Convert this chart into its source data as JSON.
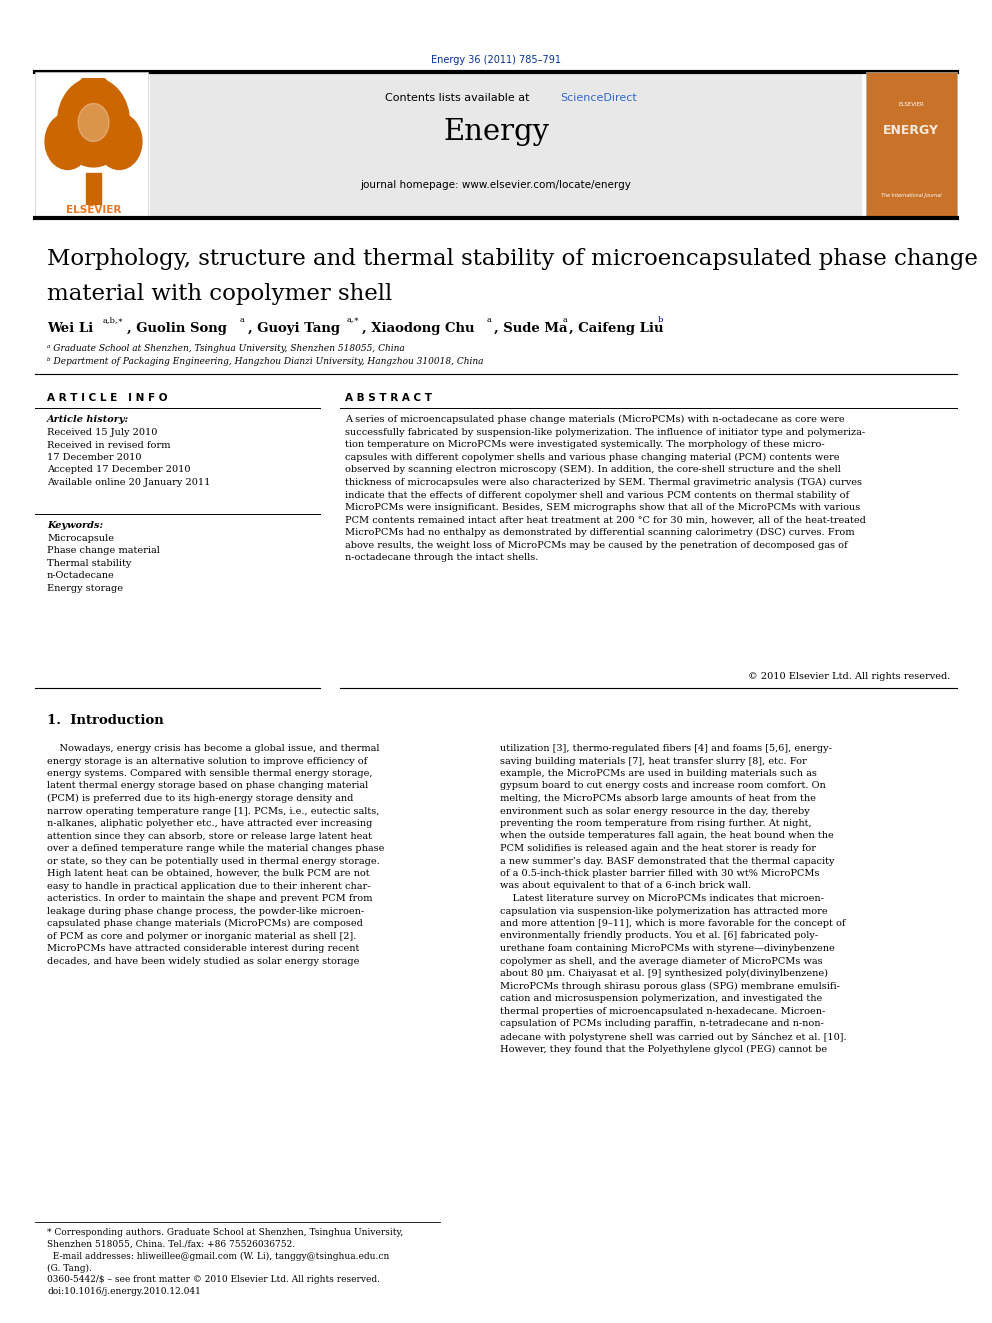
{
  "page_width": 9.92,
  "page_height": 13.23,
  "dpi": 100,
  "bg_color": "#ffffff",
  "journal_ref": "Energy 36 (2011) 785–791",
  "journal_ref_color": "#003399",
  "header_bg": "#e8e8e8",
  "sciencedirect_color": "#3366cc",
  "elsevier_color": "#e87722",
  "cover_color": "#c8722a",
  "paper_title_line1": "Morphology, structure and thermal stability of microencapsulated phase change",
  "paper_title_line2": "material with copolymer shell",
  "affil_a": "a Graduate School at Shenzhen, Tsinghua University, Shenzhen 518055, China",
  "affil_b": "b Department of Packaging Engineering, Hangzhou Dianzi University, Hangzhou 310018, China",
  "article_history": "Received 15 July 2010\nReceived in revised form\n17 December 2010\nAccepted 17 December 2010\nAvailable online 20 January 2011",
  "keywords": "Microcapsule\nPhase change material\nThermal stability\nn-Octadecane\nEnergy storage",
  "copyright": "© 2010 Elsevier Ltd. All rights reserved.",
  "footnote1": "* Corresponding authors. Graduate School at Shenzhen, Tsinghua University,\nShenzhen 518055, China. Tel./fax: +86 75526036752.\n  E-mail addresses: hliweillee@gmail.com (W. Li), tanggy@tsinghua.edu.cn\n(G. Tang).",
  "footnote2": "0360-5442/$ – see front matter © 2010 Elsevier Ltd. All rights reserved.\ndoi:10.1016/j.energy.2010.12.041"
}
